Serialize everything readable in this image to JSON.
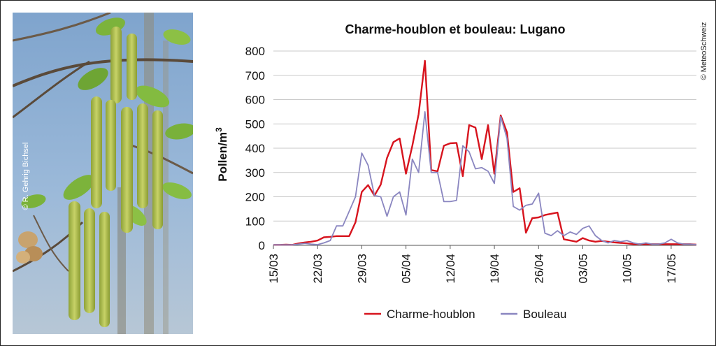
{
  "photo_credit": "© R. Gehrig Bichsel",
  "source_credit": "© MeteoSchweiz",
  "chart_data": {
    "type": "line",
    "title": "Charme-houblon et bouleau: Lugano",
    "ylabel": "Pollen/m",
    "ylabel_sup": "3",
    "xlabel": "",
    "ylim": [
      0,
      800
    ],
    "yticks": [
      0,
      100,
      200,
      300,
      400,
      500,
      600,
      700,
      800
    ],
    "yticks_labels": [
      "0",
      "100",
      "200",
      "300",
      "400",
      "500",
      "600",
      "700",
      "800"
    ],
    "grid": "horizontal",
    "legend_position": "bottom",
    "x_start": "15/03",
    "x_end": "21/05",
    "xtick_labels": [
      "15/03",
      "22/03",
      "29/03",
      "05/04",
      "12/04",
      "19/04",
      "26/04",
      "03/05",
      "10/05",
      "17/05"
    ],
    "series": [
      {
        "name": "Charme-houblon",
        "color": "#d7141e",
        "x": [
          "15/03",
          "16/03",
          "17/03",
          "18/03",
          "19/03",
          "20/03",
          "21/03",
          "22/03",
          "23/03",
          "24/03",
          "25/03",
          "26/03",
          "27/03",
          "28/03",
          "29/03",
          "30/03",
          "31/03",
          "01/04",
          "02/04",
          "03/04",
          "04/04",
          "05/04",
          "06/04",
          "07/04",
          "08/04",
          "09/04",
          "10/04",
          "11/04",
          "12/04",
          "13/04",
          "14/04",
          "15/04",
          "16/04",
          "17/04",
          "18/04",
          "19/04",
          "20/04",
          "21/04",
          "22/04",
          "23/04",
          "24/04",
          "25/04",
          "26/04",
          "27/04",
          "28/04",
          "29/04",
          "30/04",
          "01/05",
          "02/05",
          "03/05",
          "04/05",
          "05/05",
          "06/05",
          "07/05",
          "08/05",
          "09/05",
          "10/05",
          "11/05",
          "12/05",
          "13/05",
          "14/05",
          "15/05",
          "16/05",
          "17/05",
          "18/05",
          "19/05",
          "20/05",
          "21/05"
        ],
        "y": [
          2,
          2,
          3,
          2,
          8,
          12,
          15,
          20,
          33,
          35,
          38,
          38,
          38,
          95,
          220,
          248,
          205,
          250,
          360,
          425,
          440,
          295,
          410,
          540,
          760,
          310,
          305,
          410,
          420,
          422,
          285,
          495,
          485,
          355,
          495,
          295,
          535,
          465,
          220,
          235,
          52,
          112,
          115,
          125,
          130,
          135,
          25,
          20,
          15,
          30,
          20,
          15,
          18,
          15,
          12,
          10,
          8,
          5,
          5,
          5,
          5,
          5,
          5,
          5,
          5,
          5,
          5,
          3
        ]
      },
      {
        "name": "Bouleau",
        "color": "#8a86c0",
        "x": [
          "15/03",
          "16/03",
          "17/03",
          "18/03",
          "19/03",
          "20/03",
          "21/03",
          "22/03",
          "23/03",
          "24/03",
          "25/03",
          "26/03",
          "27/03",
          "28/03",
          "29/03",
          "30/03",
          "31/03",
          "01/04",
          "02/04",
          "03/04",
          "04/04",
          "05/04",
          "06/04",
          "07/04",
          "08/04",
          "09/04",
          "10/04",
          "11/04",
          "12/04",
          "13/04",
          "14/04",
          "15/04",
          "16/04",
          "17/04",
          "18/04",
          "19/04",
          "20/04",
          "21/04",
          "22/04",
          "23/04",
          "24/04",
          "25/04",
          "26/04",
          "27/04",
          "28/04",
          "29/04",
          "30/04",
          "01/05",
          "02/05",
          "03/05",
          "04/05",
          "05/05",
          "06/05",
          "07/05",
          "08/05",
          "09/05",
          "10/05",
          "11/05",
          "12/05",
          "13/05",
          "14/05",
          "15/05",
          "16/05",
          "17/05",
          "18/05",
          "19/05",
          "20/05",
          "21/05"
        ],
        "y": [
          2,
          2,
          2,
          2,
          5,
          8,
          5,
          3,
          10,
          20,
          80,
          80,
          140,
          200,
          380,
          330,
          205,
          200,
          120,
          200,
          220,
          125,
          355,
          300,
          550,
          300,
          300,
          180,
          180,
          185,
          410,
          385,
          315,
          320,
          305,
          255,
          530,
          440,
          160,
          145,
          165,
          170,
          215,
          50,
          40,
          60,
          40,
          55,
          45,
          70,
          80,
          40,
          20,
          10,
          20,
          15,
          20,
          10,
          5,
          10,
          5,
          5,
          10,
          25,
          10,
          5,
          5,
          3
        ]
      }
    ]
  }
}
